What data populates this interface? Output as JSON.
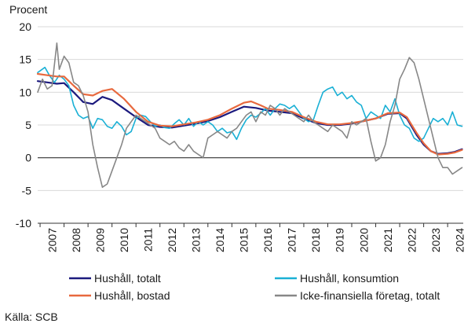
{
  "chart_data": {
    "type": "line",
    "ylabel": "Procent",
    "source": "Källa: SCB",
    "ylim": [
      -10,
      20
    ],
    "yticks": [
      20,
      15,
      10,
      5,
      0,
      -5,
      -10
    ],
    "xlim": [
      2006.9,
      2024.65
    ],
    "xticks": [
      "2007",
      "2008",
      "2009",
      "2010",
      "2011",
      "2012",
      "2013",
      "2014",
      "2015",
      "2016",
      "2017",
      "2018",
      "2019",
      "2020",
      "2021",
      "2022",
      "2023",
      "2024"
    ],
    "grid": true,
    "legend_position": "bottom",
    "series": [
      {
        "name": "Hushåll, totalt",
        "color": "#1c1a7e",
        "width": 2.2,
        "points": [
          [
            2006.9,
            11.7
          ],
          [
            2007.3,
            11.5
          ],
          [
            2007.7,
            11.3
          ],
          [
            2008.0,
            11.4
          ],
          [
            2008.4,
            10.0
          ],
          [
            2008.8,
            8.5
          ],
          [
            2009.2,
            8.2
          ],
          [
            2009.6,
            9.3
          ],
          [
            2010.0,
            8.8
          ],
          [
            2010.5,
            7.5
          ],
          [
            2011.0,
            6.2
          ],
          [
            2011.5,
            5.0
          ],
          [
            2012.0,
            4.7
          ],
          [
            2012.5,
            4.6
          ],
          [
            2013.0,
            4.9
          ],
          [
            2013.5,
            5.2
          ],
          [
            2014.0,
            5.6
          ],
          [
            2014.5,
            6.2
          ],
          [
            2015.0,
            7.0
          ],
          [
            2015.5,
            7.8
          ],
          [
            2016.0,
            7.6
          ],
          [
            2016.5,
            7.2
          ],
          [
            2017.0,
            7.0
          ],
          [
            2017.5,
            6.8
          ],
          [
            2018.0,
            6.0
          ],
          [
            2018.5,
            5.3
          ],
          [
            2019.0,
            5.0
          ],
          [
            2019.5,
            5.0
          ],
          [
            2020.0,
            5.2
          ],
          [
            2020.5,
            5.6
          ],
          [
            2021.0,
            6.0
          ],
          [
            2021.5,
            6.7
          ],
          [
            2022.0,
            6.8
          ],
          [
            2022.3,
            6.0
          ],
          [
            2022.7,
            3.5
          ],
          [
            2023.0,
            2.0
          ],
          [
            2023.3,
            1.0
          ],
          [
            2023.6,
            0.6
          ],
          [
            2024.0,
            0.7
          ],
          [
            2024.3,
            0.9
          ],
          [
            2024.6,
            1.3
          ]
        ]
      },
      {
        "name": "Hushåll, konsumtion",
        "color": "#1ab0d5",
        "width": 1.6,
        "points": [
          [
            2006.9,
            13.0
          ],
          [
            2007.2,
            13.8
          ],
          [
            2007.4,
            12.5
          ],
          [
            2007.6,
            11.5
          ],
          [
            2007.8,
            12.6
          ],
          [
            2008.0,
            12.0
          ],
          [
            2008.2,
            11.0
          ],
          [
            2008.4,
            8.0
          ],
          [
            2008.6,
            6.5
          ],
          [
            2008.8,
            6.0
          ],
          [
            2009.0,
            6.3
          ],
          [
            2009.2,
            4.5
          ],
          [
            2009.4,
            6.0
          ],
          [
            2009.6,
            5.8
          ],
          [
            2009.8,
            4.8
          ],
          [
            2010.0,
            4.5
          ],
          [
            2010.2,
            5.5
          ],
          [
            2010.4,
            4.8
          ],
          [
            2010.6,
            3.5
          ],
          [
            2010.8,
            4.0
          ],
          [
            2011.0,
            6.0
          ],
          [
            2011.2,
            6.5
          ],
          [
            2011.4,
            6.3
          ],
          [
            2011.6,
            5.5
          ],
          [
            2011.8,
            4.8
          ],
          [
            2012.0,
            5.0
          ],
          [
            2012.2,
            4.6
          ],
          [
            2012.4,
            4.5
          ],
          [
            2012.6,
            5.2
          ],
          [
            2012.8,
            5.8
          ],
          [
            2013.0,
            5.0
          ],
          [
            2013.2,
            6.0
          ],
          [
            2013.4,
            4.8
          ],
          [
            2013.6,
            5.5
          ],
          [
            2013.8,
            5.0
          ],
          [
            2014.0,
            5.5
          ],
          [
            2014.2,
            5.0
          ],
          [
            2014.4,
            4.0
          ],
          [
            2014.6,
            4.5
          ],
          [
            2014.8,
            3.8
          ],
          [
            2015.0,
            4.0
          ],
          [
            2015.2,
            2.8
          ],
          [
            2015.4,
            4.5
          ],
          [
            2015.6,
            5.8
          ],
          [
            2015.8,
            6.5
          ],
          [
            2016.0,
            6.2
          ],
          [
            2016.2,
            6.8
          ],
          [
            2016.4,
            7.5
          ],
          [
            2016.6,
            6.5
          ],
          [
            2016.8,
            7.5
          ],
          [
            2017.0,
            8.2
          ],
          [
            2017.2,
            8.0
          ],
          [
            2017.4,
            7.5
          ],
          [
            2017.6,
            8.0
          ],
          [
            2017.8,
            7.0
          ],
          [
            2018.0,
            6.0
          ],
          [
            2018.2,
            5.5
          ],
          [
            2018.4,
            5.8
          ],
          [
            2018.6,
            8.0
          ],
          [
            2018.8,
            10.0
          ],
          [
            2019.0,
            10.5
          ],
          [
            2019.2,
            10.8
          ],
          [
            2019.4,
            9.5
          ],
          [
            2019.6,
            10.0
          ],
          [
            2019.8,
            9.0
          ],
          [
            2020.0,
            9.5
          ],
          [
            2020.2,
            8.5
          ],
          [
            2020.4,
            8.0
          ],
          [
            2020.6,
            6.0
          ],
          [
            2020.8,
            7.0
          ],
          [
            2021.0,
            6.5
          ],
          [
            2021.2,
            6.0
          ],
          [
            2021.4,
            8.0
          ],
          [
            2021.6,
            7.0
          ],
          [
            2021.8,
            9.0
          ],
          [
            2022.0,
            6.5
          ],
          [
            2022.2,
            5.0
          ],
          [
            2022.4,
            4.5
          ],
          [
            2022.6,
            3.0
          ],
          [
            2022.8,
            2.5
          ],
          [
            2023.0,
            3.0
          ],
          [
            2023.2,
            4.5
          ],
          [
            2023.4,
            6.0
          ],
          [
            2023.6,
            5.5
          ],
          [
            2023.8,
            6.0
          ],
          [
            2024.0,
            5.0
          ],
          [
            2024.2,
            7.0
          ],
          [
            2024.4,
            5.0
          ],
          [
            2024.6,
            4.8
          ]
        ]
      },
      {
        "name": "Hushåll, bostad",
        "color": "#e8693e",
        "width": 2.2,
        "points": [
          [
            2006.9,
            12.8
          ],
          [
            2007.3,
            12.6
          ],
          [
            2007.7,
            12.4
          ],
          [
            2008.0,
            12.4
          ],
          [
            2008.4,
            11.0
          ],
          [
            2008.8,
            9.7
          ],
          [
            2009.2,
            9.5
          ],
          [
            2009.6,
            10.2
          ],
          [
            2010.0,
            10.5
          ],
          [
            2010.5,
            9.0
          ],
          [
            2011.0,
            7.0
          ],
          [
            2011.5,
            5.5
          ],
          [
            2012.0,
            4.9
          ],
          [
            2012.5,
            4.8
          ],
          [
            2013.0,
            5.1
          ],
          [
            2013.5,
            5.4
          ],
          [
            2014.0,
            5.8
          ],
          [
            2014.5,
            6.5
          ],
          [
            2015.0,
            7.5
          ],
          [
            2015.5,
            8.4
          ],
          [
            2015.8,
            8.6
          ],
          [
            2016.2,
            8.0
          ],
          [
            2016.5,
            7.5
          ],
          [
            2017.0,
            7.3
          ],
          [
            2017.5,
            7.0
          ],
          [
            2018.0,
            6.2
          ],
          [
            2018.5,
            5.5
          ],
          [
            2019.0,
            5.1
          ],
          [
            2019.5,
            5.1
          ],
          [
            2020.0,
            5.3
          ],
          [
            2020.5,
            5.6
          ],
          [
            2021.0,
            6.0
          ],
          [
            2021.5,
            6.8
          ],
          [
            2022.0,
            6.9
          ],
          [
            2022.3,
            6.2
          ],
          [
            2022.7,
            3.8
          ],
          [
            2023.0,
            2.2
          ],
          [
            2023.3,
            1.0
          ],
          [
            2023.6,
            0.5
          ],
          [
            2024.0,
            0.6
          ],
          [
            2024.3,
            0.8
          ],
          [
            2024.6,
            1.2
          ]
        ]
      },
      {
        "name": "Icke-finansiella företag, totalt",
        "color": "#878787",
        "width": 1.6,
        "points": [
          [
            2006.9,
            10.0
          ],
          [
            2007.1,
            12.0
          ],
          [
            2007.3,
            10.5
          ],
          [
            2007.5,
            11.0
          ],
          [
            2007.7,
            17.5
          ],
          [
            2007.8,
            13.5
          ],
          [
            2008.0,
            15.5
          ],
          [
            2008.2,
            14.5
          ],
          [
            2008.4,
            11.5
          ],
          [
            2008.6,
            11.0
          ],
          [
            2008.8,
            9.5
          ],
          [
            2009.0,
            7.0
          ],
          [
            2009.2,
            2.0
          ],
          [
            2009.4,
            -1.5
          ],
          [
            2009.6,
            -4.5
          ],
          [
            2009.8,
            -4.0
          ],
          [
            2010.0,
            -2.0
          ],
          [
            2010.2,
            0.0
          ],
          [
            2010.4,
            2.0
          ],
          [
            2010.6,
            4.5
          ],
          [
            2010.8,
            5.5
          ],
          [
            2011.0,
            6.5
          ],
          [
            2011.2,
            6.0
          ],
          [
            2011.4,
            5.5
          ],
          [
            2011.6,
            5.0
          ],
          [
            2011.8,
            4.5
          ],
          [
            2012.0,
            3.0
          ],
          [
            2012.2,
            2.5
          ],
          [
            2012.4,
            2.0
          ],
          [
            2012.6,
            2.5
          ],
          [
            2012.8,
            1.5
          ],
          [
            2013.0,
            1.0
          ],
          [
            2013.2,
            2.0
          ],
          [
            2013.4,
            1.0
          ],
          [
            2013.6,
            0.5
          ],
          [
            2013.8,
            0.0
          ],
          [
            2014.0,
            3.0
          ],
          [
            2014.2,
            3.5
          ],
          [
            2014.4,
            4.0
          ],
          [
            2014.6,
            3.5
          ],
          [
            2014.8,
            3.0
          ],
          [
            2015.0,
            4.0
          ],
          [
            2015.2,
            4.5
          ],
          [
            2015.4,
            5.5
          ],
          [
            2015.6,
            6.5
          ],
          [
            2015.8,
            7.0
          ],
          [
            2016.0,
            5.5
          ],
          [
            2016.2,
            7.0
          ],
          [
            2016.4,
            6.5
          ],
          [
            2016.6,
            8.0
          ],
          [
            2016.8,
            7.5
          ],
          [
            2017.0,
            6.5
          ],
          [
            2017.2,
            7.5
          ],
          [
            2017.4,
            7.0
          ],
          [
            2017.6,
            6.5
          ],
          [
            2017.8,
            6.0
          ],
          [
            2018.0,
            5.5
          ],
          [
            2018.2,
            6.5
          ],
          [
            2018.4,
            5.5
          ],
          [
            2018.6,
            5.0
          ],
          [
            2018.8,
            4.5
          ],
          [
            2019.0,
            4.0
          ],
          [
            2019.2,
            5.0
          ],
          [
            2019.4,
            4.5
          ],
          [
            2019.6,
            4.0
          ],
          [
            2019.8,
            3.0
          ],
          [
            2020.0,
            5.5
          ],
          [
            2020.2,
            5.0
          ],
          [
            2020.4,
            5.5
          ],
          [
            2020.6,
            6.0
          ],
          [
            2020.8,
            2.5
          ],
          [
            2021.0,
            -0.5
          ],
          [
            2021.2,
            0.0
          ],
          [
            2021.4,
            2.0
          ],
          [
            2021.6,
            5.5
          ],
          [
            2021.8,
            8.0
          ],
          [
            2022.0,
            12.0
          ],
          [
            2022.2,
            13.5
          ],
          [
            2022.4,
            15.3
          ],
          [
            2022.6,
            14.5
          ],
          [
            2022.8,
            12.0
          ],
          [
            2023.0,
            9.0
          ],
          [
            2023.2,
            6.0
          ],
          [
            2023.4,
            3.0
          ],
          [
            2023.6,
            0.0
          ],
          [
            2023.8,
            -1.5
          ],
          [
            2024.0,
            -1.5
          ],
          [
            2024.2,
            -2.5
          ],
          [
            2024.4,
            -2.0
          ],
          [
            2024.6,
            -1.5
          ]
        ]
      }
    ]
  }
}
